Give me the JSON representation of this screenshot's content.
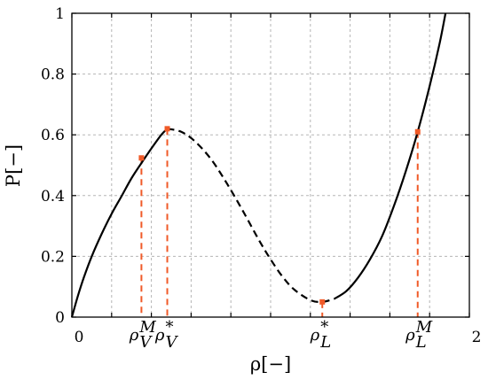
{
  "chart_data": {
    "type": "line",
    "xlabel": "ρ[−]",
    "ylabel": "P[−]",
    "xlim": [
      0,
      2
    ],
    "ylim": [
      0,
      1
    ],
    "grid": true,
    "x_ticks": [
      {
        "value": 0,
        "label": "0"
      },
      {
        "value": 2,
        "label": "2"
      }
    ],
    "y_ticks": [
      {
        "value": 0,
        "label": "0"
      },
      {
        "value": 0.2,
        "label": "0.2"
      },
      {
        "value": 0.4,
        "label": "0.4"
      },
      {
        "value": 0.6,
        "label": "0.6"
      },
      {
        "value": 0.8,
        "label": "0.8"
      },
      {
        "value": 1,
        "label": "1"
      }
    ],
    "grid_x": [
      0.2,
      0.4,
      0.6,
      0.8,
      1.0,
      1.2,
      1.4,
      1.6,
      1.8,
      2.0
    ],
    "grid_y": [
      0.2,
      0.4,
      0.6,
      0.8,
      1.0
    ],
    "series": [
      {
        "style": "solid",
        "color": "#000000",
        "x": [
          0.0,
          0.03,
          0.06,
          0.1,
          0.15,
          0.2,
          0.25,
          0.3,
          0.35,
          0.4,
          0.45,
          0.48
        ],
        "y": [
          0.0,
          0.069,
          0.13,
          0.2,
          0.274,
          0.34,
          0.398,
          0.457,
          0.507,
          0.555,
          0.6,
          0.62
        ]
      },
      {
        "style": "dashed",
        "color": "#000000",
        "x": [
          0.48,
          0.55,
          0.62,
          0.7,
          0.78,
          0.86,
          0.94,
          1.0,
          1.06,
          1.12,
          1.2,
          1.26,
          1.32
        ],
        "y": [
          0.62,
          0.61,
          0.578,
          0.52,
          0.44,
          0.35,
          0.255,
          0.19,
          0.133,
          0.09,
          0.056,
          0.05,
          0.06
        ]
      },
      {
        "style": "solid",
        "color": "#000000",
        "x": [
          1.32,
          1.38,
          1.44,
          1.5,
          1.56,
          1.62,
          1.68,
          1.74,
          1.8,
          1.85,
          1.88
        ],
        "y": [
          0.06,
          0.085,
          0.13,
          0.19,
          0.265,
          0.365,
          0.48,
          0.61,
          0.76,
          0.9,
          1.0
        ]
      }
    ],
    "markers": [
      {
        "name": "rho_V_M",
        "x": 0.35,
        "y": 0.524,
        "color": "#f05a28",
        "label_base": "ρ",
        "label_sup": "M",
        "label_sub": "V"
      },
      {
        "name": "rho_V_star",
        "x": 0.48,
        "y": 0.62,
        "color": "#f05a28",
        "label_base": "ρ",
        "label_sup": "*",
        "label_sub": "V"
      },
      {
        "name": "rho_L_star",
        "x": 1.26,
        "y": 0.05,
        "color": "#f05a28",
        "label_base": "ρ",
        "label_sup": "*",
        "label_sub": "L"
      },
      {
        "name": "rho_L_M",
        "x": 1.74,
        "y": 0.61,
        "color": "#f05a28",
        "label_base": "ρ",
        "label_sup": "M",
        "label_sub": "L"
      }
    ]
  }
}
